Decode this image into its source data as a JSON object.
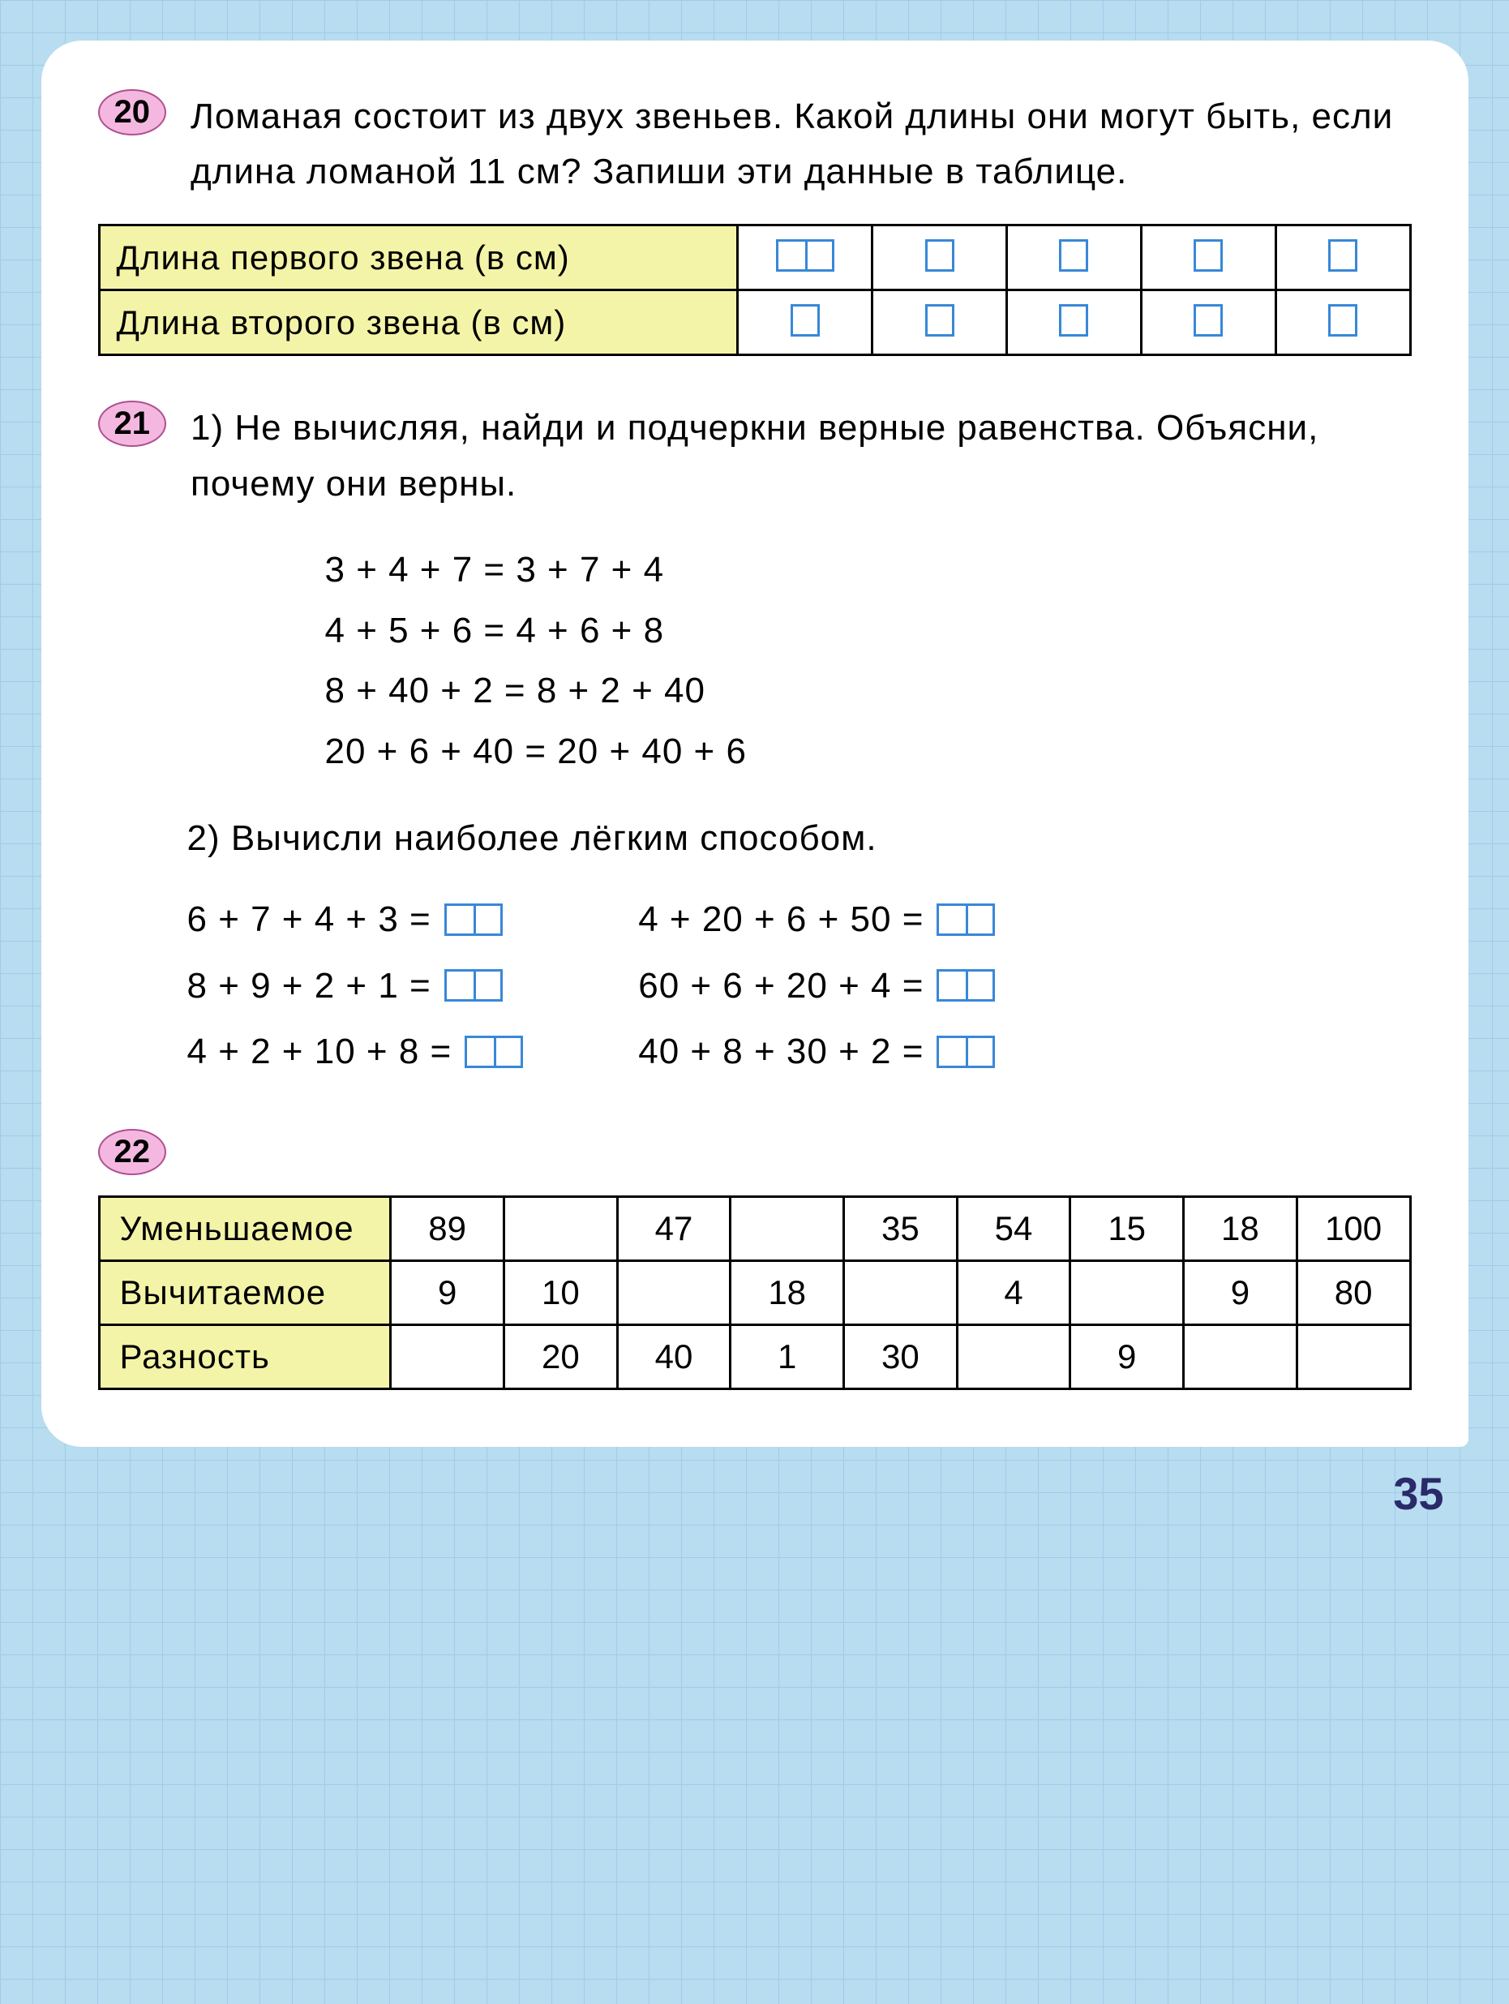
{
  "page_number": "35",
  "colors": {
    "background": "#b8dcf0",
    "grid": "#a0cce8",
    "paper": "#ffffff",
    "badge_fill": "#f4b8e0",
    "badge_border": "#b05090",
    "table_header_fill": "#f4f4a8",
    "input_box_border": "#3888d8",
    "text": "#000000"
  },
  "typography": {
    "body_fontsize_pt": 32,
    "page_number_fontsize_pt": 40,
    "font_family": "sans-serif"
  },
  "ex20": {
    "number": "20",
    "text": "Ломаная состоит из двух звеньев. Какой длины они могут быть, если длина ломаной 11 см? Запиши эти данные в таблице.",
    "table": {
      "rows": [
        {
          "label": "Длина первого звена (в см)",
          "cells": [
            "2",
            "1",
            "1",
            "1",
            "1"
          ]
        },
        {
          "label": "Длина второго звена (в см)",
          "cells": [
            "1",
            "1",
            "1",
            "1",
            "1"
          ]
        }
      ]
    }
  },
  "ex21": {
    "number": "21",
    "part1_label": "1)",
    "part1_text": "Не вычисляя, найди и подчеркни верные равенства. Объясни, почему они верны.",
    "equations": [
      "3 + 4 + 7 = 3 + 7 + 4",
      "4 + 5 + 6 = 4 + 6 + 8",
      "8 + 40 + 2 = 8 + 2 + 40",
      "20 + 6 + 40 = 20 + 40 + 6"
    ],
    "part2_label": "2)",
    "part2_text": "Вычисли наиболее лёгким способом.",
    "calc_left": [
      "6 + 7 + 4 + 3 =",
      "8 + 9 + 2 + 1 =",
      "4 + 2 + 10 + 8 ="
    ],
    "calc_right": [
      "4 + 20 + 6 + 50 =",
      "60 + 6 + 20 + 4 =",
      "40 + 8 + 30 + 2 ="
    ]
  },
  "ex22": {
    "number": "22",
    "table": {
      "columns_count": 9,
      "rows": [
        {
          "label": "Уменьшаемое",
          "cells": [
            "89",
            "",
            "47",
            "",
            "35",
            "54",
            "15",
            "18",
            "100"
          ]
        },
        {
          "label": "Вычитаемое",
          "cells": [
            "9",
            "10",
            "",
            "18",
            "",
            "4",
            "",
            "9",
            "80"
          ]
        },
        {
          "label": "Разность",
          "cells": [
            "",
            "20",
            "40",
            "1",
            "30",
            "",
            "9",
            "",
            ""
          ]
        }
      ]
    }
  }
}
